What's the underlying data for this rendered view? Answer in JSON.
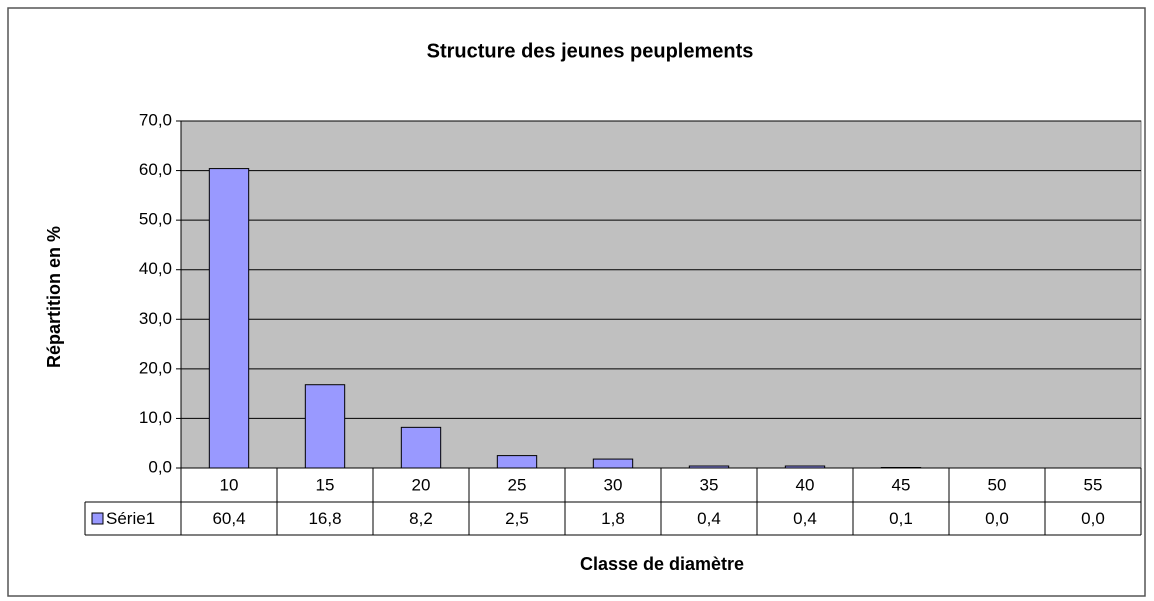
{
  "chart_data": {
    "type": "bar",
    "title": "Structure des jeunes peuplements",
    "x_label": "Classe de diamètre",
    "y_label": "Répartition en %",
    "categories": [
      "10",
      "15",
      "20",
      "25",
      "30",
      "35",
      "40",
      "45",
      "50",
      "55"
    ],
    "series": [
      {
        "name": "Série1",
        "color": "#9999ff",
        "values": [
          60.4,
          16.8,
          8.2,
          2.5,
          1.8,
          0.4,
          0.4,
          0.1,
          0.0,
          0.0
        ],
        "value_labels": [
          "60,4",
          "16,8",
          "8,2",
          "2,5",
          "1,8",
          "0,4",
          "0,4",
          "0,1",
          "0,0",
          "0,0"
        ]
      }
    ],
    "ylim": [
      0,
      70
    ],
    "yticks": [
      {
        "value": 0,
        "label": "0,0"
      },
      {
        "value": 10,
        "label": "10,0"
      },
      {
        "value": 20,
        "label": "20,0"
      },
      {
        "value": 30,
        "label": "30,0"
      },
      {
        "value": 40,
        "label": "40,0"
      },
      {
        "value": 50,
        "label": "50,0"
      },
      {
        "value": 60,
        "label": "60,0"
      },
      {
        "value": 70,
        "label": "70,0"
      }
    ],
    "grid": true,
    "plot_background": "#c0c0c0"
  }
}
